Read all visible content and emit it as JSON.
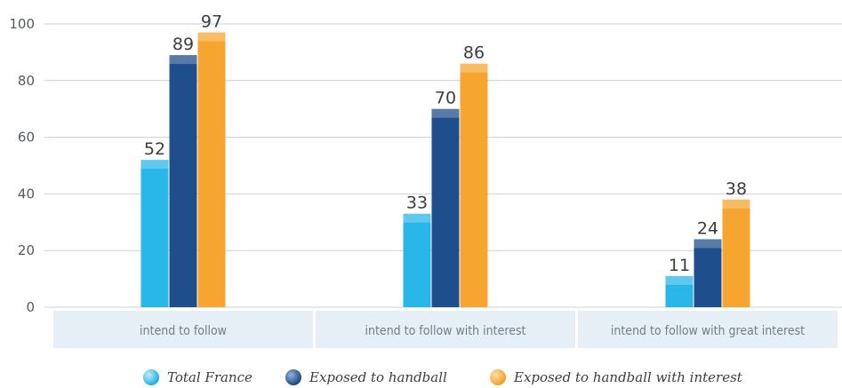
{
  "chart_data": {
    "type": "bar",
    "categories": [
      "intend to follow",
      "intend to follow with interest",
      "intend to follow with great interest"
    ],
    "series": [
      {
        "name": "Total France",
        "values": [
          52,
          33,
          11
        ],
        "color": "#29b6e8"
      },
      {
        "name": "Exposed to handball",
        "values": [
          89,
          70,
          24
        ],
        "color": "#1f4e8c"
      },
      {
        "name": "Exposed to handball with interest",
        "values": [
          97,
          86,
          38
        ],
        "color": "#f7a531"
      }
    ],
    "yticks": [
      0,
      20,
      40,
      60,
      80,
      100
    ],
    "ylim": [
      0,
      100
    ],
    "grid": true,
    "legend": "bottom",
    "title": "",
    "xlabel": "",
    "ylabel": ""
  }
}
